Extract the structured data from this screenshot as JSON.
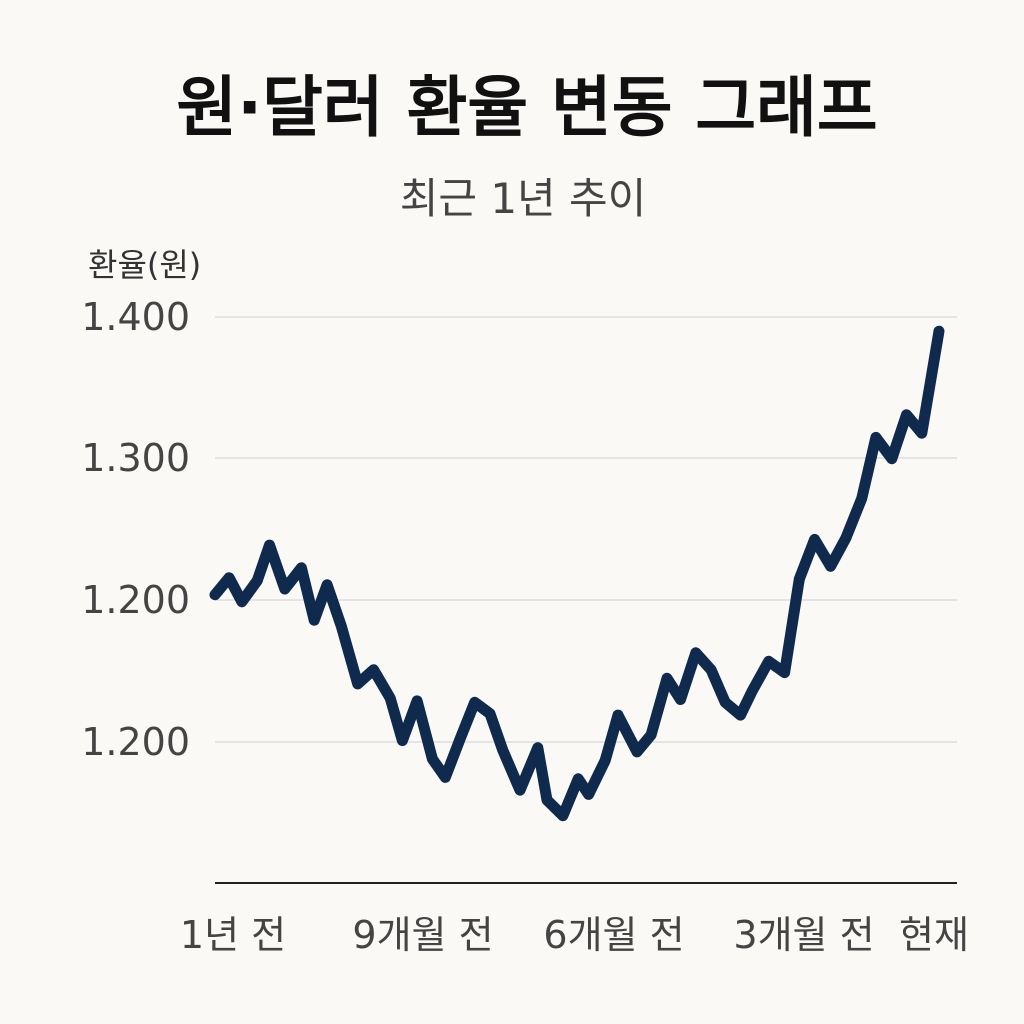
{
  "chart_data": {
    "type": "line",
    "title": "원·달러 환율 변동 그래프",
    "subtitle": "최근 1년 추이",
    "ylabel": "환율(원)",
    "xlabel": "",
    "grid": true,
    "legend": "none",
    "line_color": "#0f2a4d",
    "y_tick_labels": [
      "1.400",
      "1.300",
      "1.200",
      "1.200"
    ],
    "x_tick_labels": [
      "1년 전",
      "9개월 전",
      "6개월 전",
      "3개월 전",
      "현재"
    ],
    "ylim": [
      1000,
      1500
    ],
    "xlim": [
      0,
      12
    ],
    "series": [
      {
        "x": [
          0,
          0.23,
          0.44,
          0.69,
          0.89,
          1.14,
          1.41,
          1.62,
          1.83,
          2.06,
          2.33,
          2.59,
          2.86,
          3.06,
          3.3,
          3.55,
          3.76,
          4.0,
          4.24,
          4.49,
          4.7,
          4.98,
          5.27,
          5.42,
          5.68,
          5.93,
          6.1,
          6.37,
          6.58,
          6.89,
          7.12,
          7.38,
          7.6,
          7.85,
          8.1,
          8.33,
          8.58,
          8.77,
          9.04,
          9.3,
          9.54,
          9.79,
          10.05,
          10.3,
          10.56,
          10.79,
          11.05,
          11.29,
          11.54,
          11.82
        ],
        "y": [
          1204,
          1216,
          1199,
          1214,
          1239,
          1208,
          1223,
          1186,
          1211,
          1182,
          1141,
          1151,
          1131,
          1101,
          1129,
          1088,
          1075,
          1102,
          1128,
          1120,
          1094,
          1066,
          1096,
          1059,
          1048,
          1074,
          1063,
          1087,
          1119,
          1093,
          1105,
          1145,
          1130,
          1163,
          1151,
          1128,
          1119,
          1136,
          1157,
          1149,
          1215,
          1243,
          1224,
          1244,
          1272,
          1315,
          1300,
          1331,
          1318,
          1390
        ]
      }
    ]
  }
}
